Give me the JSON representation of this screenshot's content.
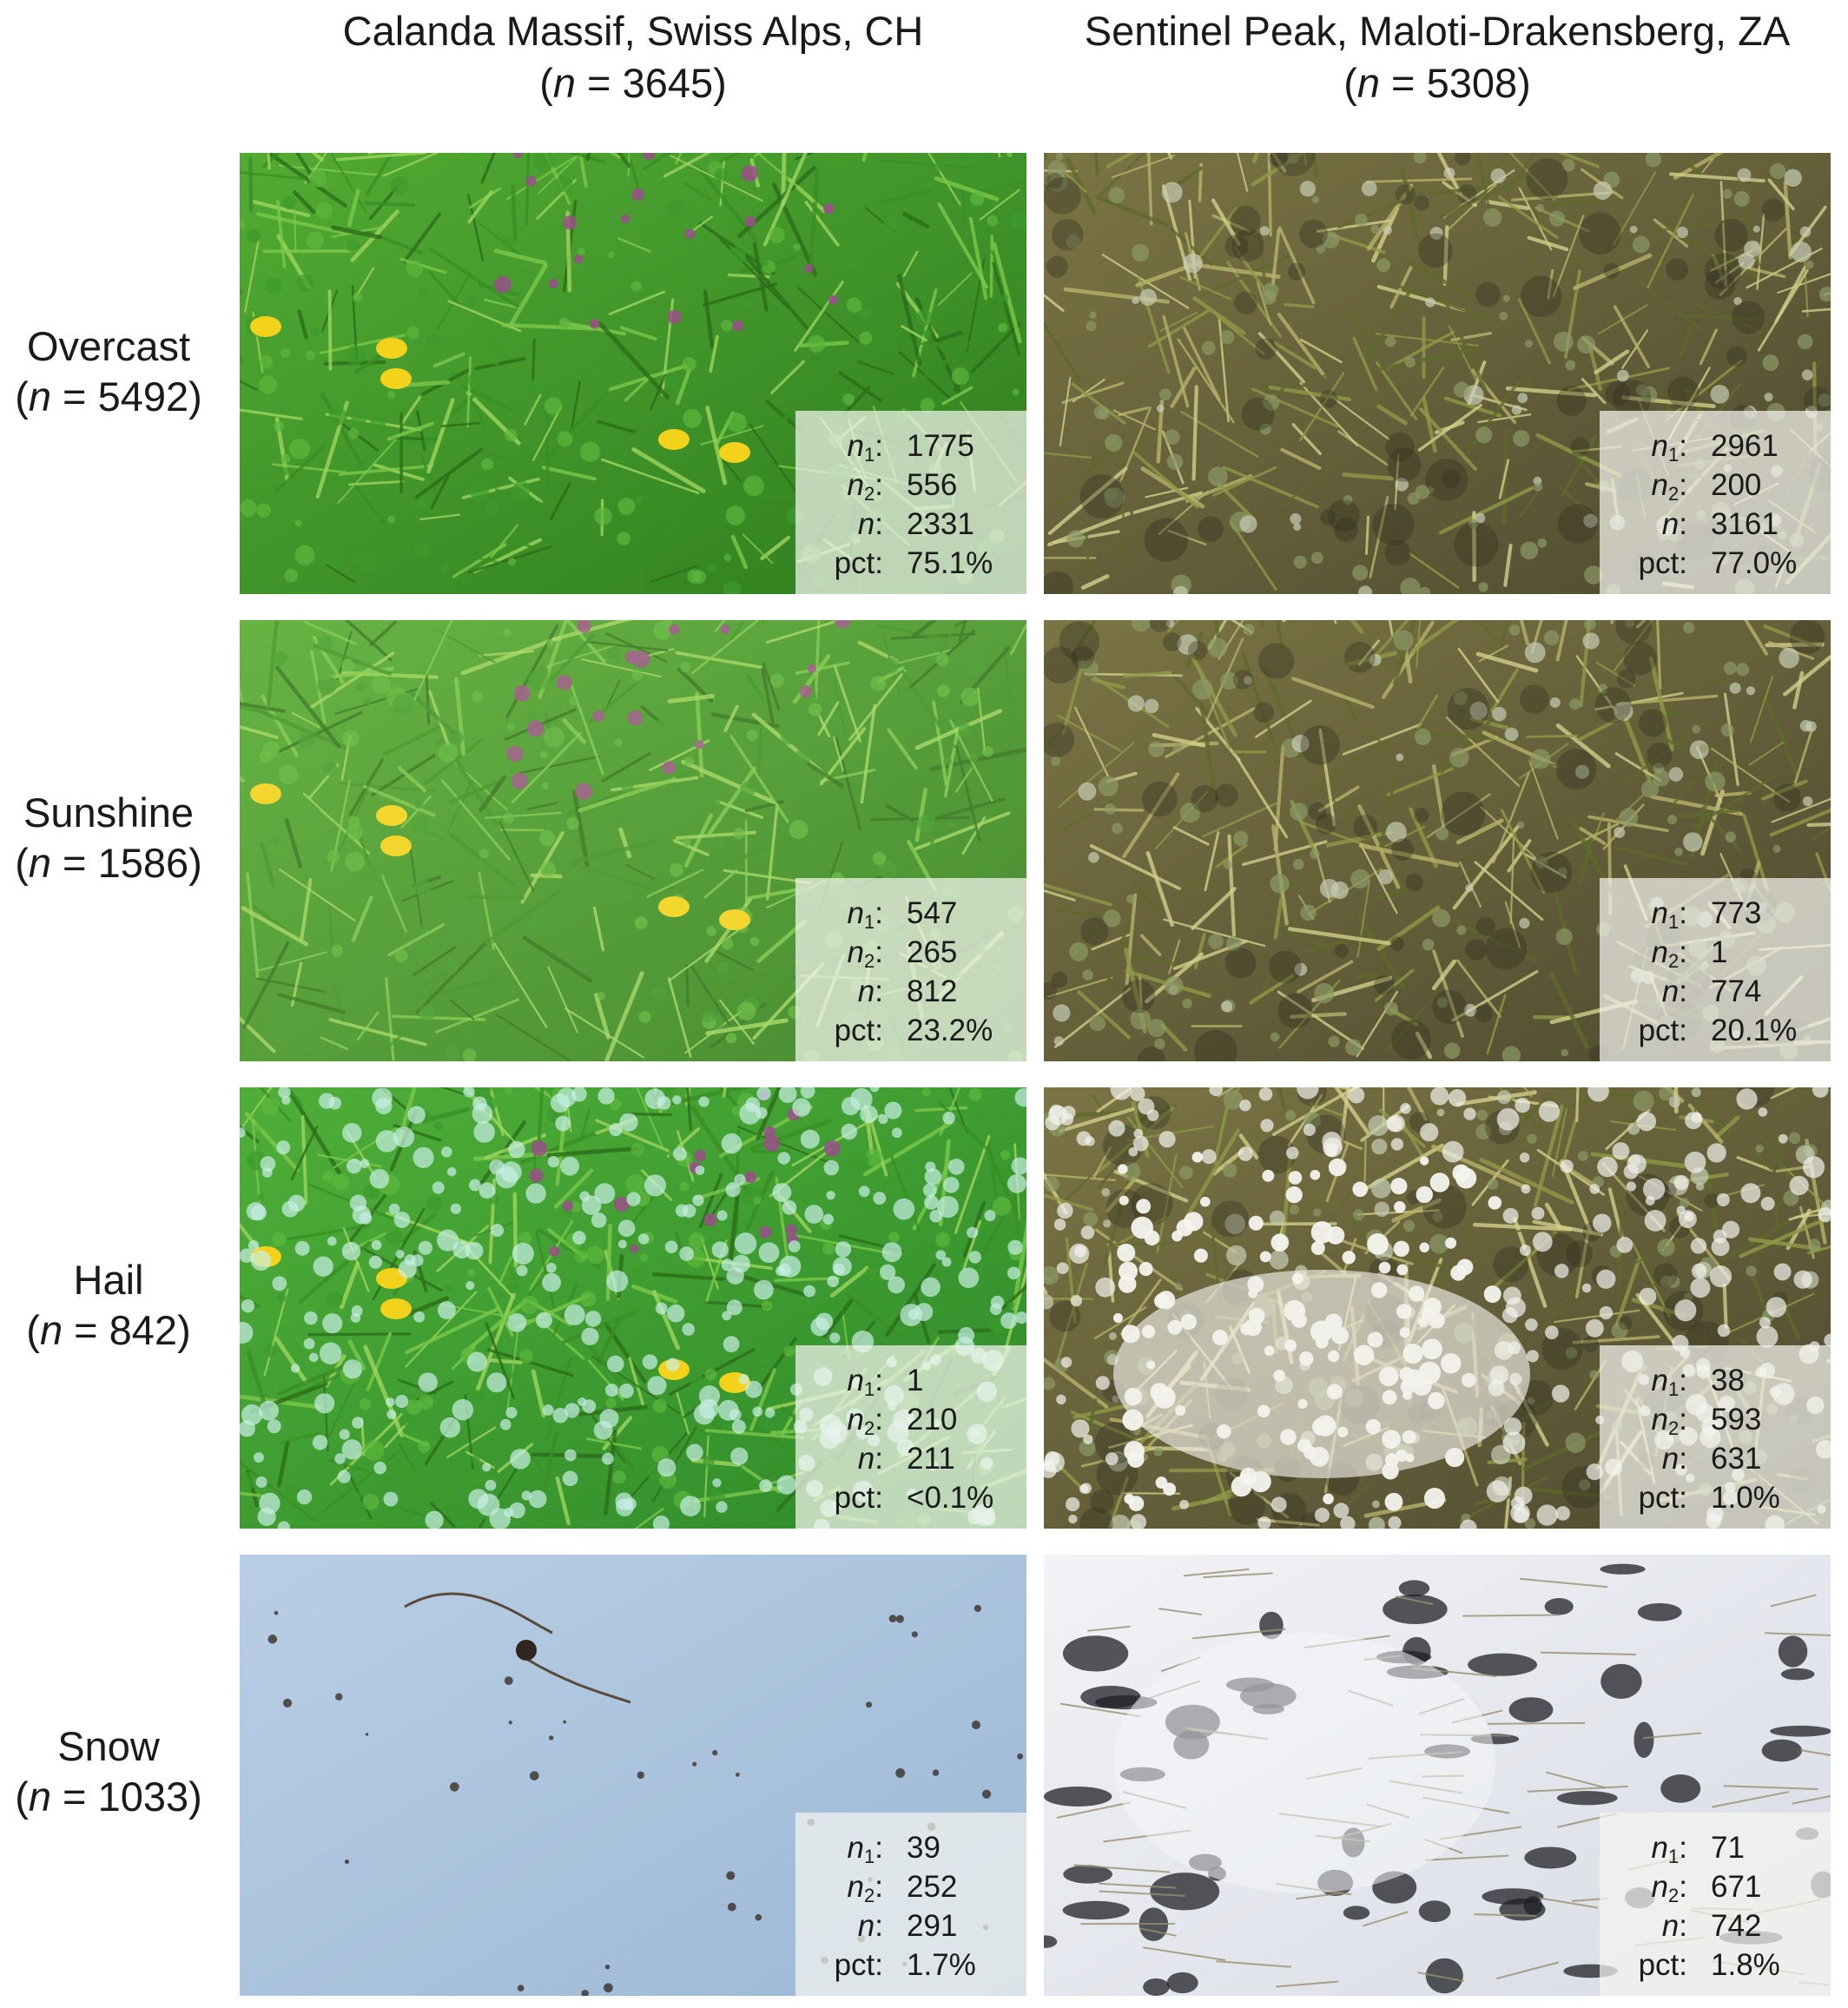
{
  "columns": [
    {
      "site": "Calanda Massif, Swiss Alps, CH",
      "n_label": "n",
      "n_value": " = 3645"
    },
    {
      "site": "Sentinel Peak, Maloti-Drakensberg, ZA",
      "n_label": "n",
      "n_value": " = 5308"
    }
  ],
  "rows": [
    {
      "condition": "Overcast",
      "n_label": "n",
      "n_value": " = 5492"
    },
    {
      "condition": "Sunshine",
      "n_label": "n",
      "n_value": " = 1586"
    },
    {
      "condition": "Hail",
      "n_label": "n",
      "n_value": " = 842"
    },
    {
      "condition": "Snow",
      "n_label": "n",
      "n_value": " = 1033"
    }
  ],
  "stat_keys": {
    "n1": "n",
    "n1_sub": "1",
    "n2": "n",
    "n2_sub": "2",
    "n": "n",
    "pct": "pct",
    "colon": ":"
  },
  "cells": [
    [
      {
        "n1": "1775",
        "n2": "556",
        "n": "2331",
        "pct": "75.1%",
        "scene": "green meadow with yellow and purple flowers"
      },
      {
        "n1": "2961",
        "n2": "200",
        "n": "3161",
        "pct": "77.0%",
        "scene": "dry grass and grey-green shrubs"
      }
    ],
    [
      {
        "n1": "547",
        "n2": "265",
        "n": "812",
        "pct": "23.2%",
        "scene": "sunlit green meadow with flowers"
      },
      {
        "n1": "773",
        "n2": "1",
        "n": "774",
        "pct": "20.1%",
        "scene": "sunlit dry grass and shrubs"
      }
    ],
    [
      {
        "n1": "1",
        "n2": "210",
        "n": "211",
        "pct": "<0.1%",
        "scene": "green meadow covered with hail stones"
      },
      {
        "n1": "38",
        "n2": "593",
        "n": "631",
        "pct": "1.0%",
        "scene": "grass and shrubs with hail"
      }
    ],
    [
      {
        "n1": "39",
        "n2": "252",
        "n": "291",
        "pct": "1.7%",
        "scene": "blue-tinted snow cover with few debris"
      },
      {
        "n1": "71",
        "n2": "671",
        "n": "742",
        "pct": "1.8%",
        "scene": "white snow with dark plant patches"
      }
    ]
  ],
  "palette": {
    "meadow_green": "#3f9a2a",
    "dry_grass": "#6f6a3c",
    "hail_white": "#d8f0ea",
    "snow_blue": "#a9c2dc",
    "snow_white": "#e8eaf0",
    "flower_yellow": "#f2d21b",
    "flower_purple": "#9a4f8a"
  }
}
